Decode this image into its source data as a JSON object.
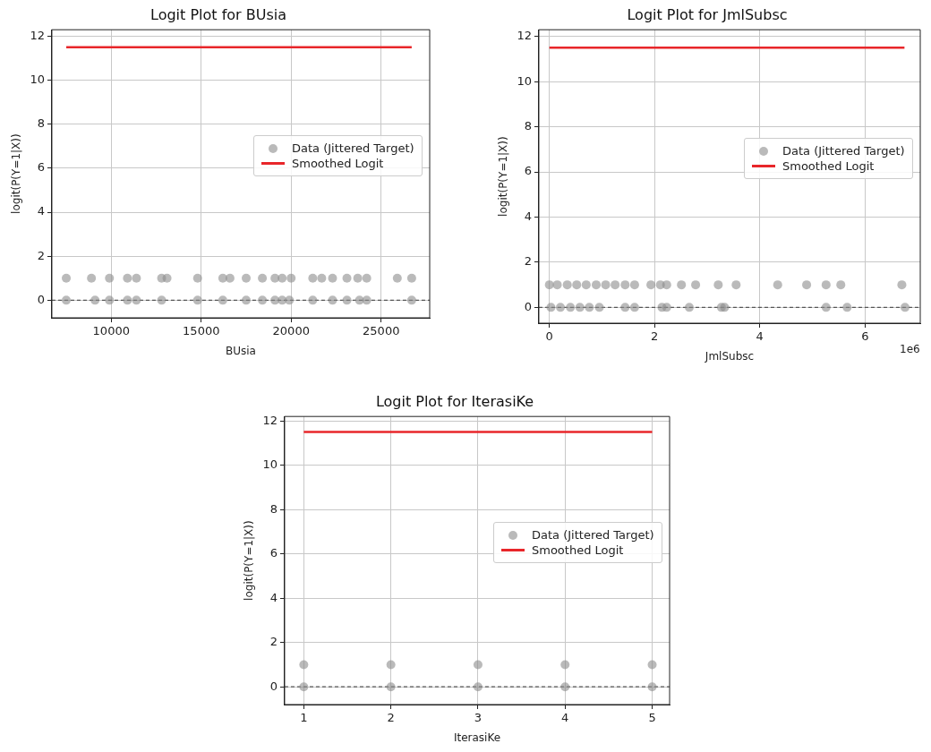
{
  "chart_data": [
    {
      "type": "scatter",
      "title": "Logit Plot for BUsia",
      "xlabel": "BUsia",
      "ylabel": "logit(P(Y=1|X))",
      "xlim": [
        6700,
        27700
      ],
      "ylim": [
        -0.8,
        12.3
      ],
      "xticks": [
        10000,
        15000,
        20000,
        25000
      ],
      "yticks": [
        0,
        2,
        4,
        6,
        8,
        10,
        12
      ],
      "grid": true,
      "legend": "center right",
      "ref_lines": [
        {
          "axis": "y",
          "value": 0,
          "color": "#555555",
          "line_style": "dashed"
        }
      ],
      "series": [
        {
          "name": "Data (Jittered Target)",
          "type": "scatter",
          "marker": "circle",
          "color": "#8c8c8c",
          "x": [
            7500,
            8900,
            9900,
            10900,
            11400,
            12800,
            13100,
            14800,
            16200,
            16600,
            17500,
            18400,
            19100,
            19500,
            20000,
            21200,
            21700,
            22300,
            23100,
            23700,
            24200,
            25900,
            26700,
            7500,
            9100,
            9900,
            10900,
            11400,
            12800,
            14800,
            16200,
            17500,
            18400,
            19100,
            19500,
            19900,
            21200,
            22300,
            23100,
            23800,
            24200,
            26700
          ],
          "values": [
            1,
            1,
            1,
            1,
            1,
            1,
            1,
            1,
            1,
            1,
            1,
            1,
            1,
            1,
            1,
            1,
            1,
            1,
            1,
            1,
            1,
            1,
            1,
            0,
            0,
            0,
            0,
            0,
            0,
            0,
            0,
            0,
            0,
            0,
            0,
            0,
            0,
            0,
            0,
            0,
            0,
            0
          ]
        },
        {
          "name": "Smoothed Logit",
          "type": "line",
          "color": "#e8262a",
          "x": [
            7500,
            26700
          ],
          "values": [
            11.5,
            11.5
          ]
        }
      ]
    },
    {
      "type": "scatter",
      "title": "Logit Plot for JmlSubsc",
      "xlabel": "JmlSubsc",
      "ylabel": "logit(P(Y=1|X))",
      "xlim": [
        -0.2,
        7.05
      ],
      "ylim": [
        -0.7,
        12.3
      ],
      "xticks": [
        0,
        2,
        4,
        6
      ],
      "yticks": [
        0,
        2,
        4,
        6,
        8,
        10,
        12
      ],
      "grid": true,
      "legend": "center right",
      "annotations": [
        "1e6"
      ],
      "ref_lines": [
        {
          "axis": "y",
          "value": 0,
          "color": "#555555",
          "line_style": "dashed"
        }
      ],
      "series": [
        {
          "name": "Data (Jittered Target)",
          "type": "scatter",
          "marker": "circle",
          "color": "#8c8c8c",
          "x": [
            0,
            0.15,
            0.34,
            0.52,
            0.7,
            0.89,
            1.07,
            1.25,
            1.44,
            1.62,
            1.93,
            2.11,
            2.23,
            2.51,
            2.78,
            3.21,
            3.55,
            4.34,
            4.89,
            5.26,
            5.54,
            6.7,
            0.03,
            0.21,
            0.4,
            0.58,
            0.76,
            0.95,
            1.44,
            1.62,
            2.14,
            2.23,
            2.66,
            3.27,
            3.33,
            5.26,
            5.66,
            6.76
          ],
          "values": [
            1,
            1,
            1,
            1,
            1,
            1,
            1,
            1,
            1,
            1,
            1,
            1,
            1,
            1,
            1,
            1,
            1,
            1,
            1,
            1,
            1,
            1,
            0,
            0,
            0,
            0,
            0,
            0,
            0,
            0,
            0,
            0,
            0,
            0,
            0,
            0,
            0,
            0
          ]
        },
        {
          "name": "Smoothed Logit",
          "type": "line",
          "color": "#e8262a",
          "x": [
            0,
            6.75
          ],
          "values": [
            11.5,
            11.5
          ]
        }
      ]
    },
    {
      "type": "scatter",
      "title": "Logit Plot for IterasiKe",
      "xlabel": "IterasiKe",
      "ylabel": "logit(P(Y=1|X))",
      "xlim": [
        0.78,
        5.2
      ],
      "ylim": [
        -0.8,
        12.2
      ],
      "xticks": [
        1,
        2,
        3,
        4,
        5
      ],
      "yticks": [
        0,
        2,
        4,
        6,
        8,
        10,
        12
      ],
      "grid": true,
      "legend": "center right",
      "ref_lines": [
        {
          "axis": "y",
          "value": 0,
          "color": "#555555",
          "line_style": "dashed"
        }
      ],
      "series": [
        {
          "name": "Data (Jittered Target)",
          "type": "scatter",
          "marker": "circle",
          "color": "#8c8c8c",
          "x": [
            1,
            2,
            3,
            4,
            5,
            1,
            2,
            3,
            4,
            5
          ],
          "values": [
            1,
            1,
            1,
            1,
            1,
            0,
            0,
            0,
            0,
            0
          ]
        },
        {
          "name": "Smoothed Logit",
          "type": "line",
          "color": "#e8262a",
          "x": [
            1,
            5
          ],
          "values": [
            11.5,
            11.5
          ]
        }
      ]
    }
  ]
}
